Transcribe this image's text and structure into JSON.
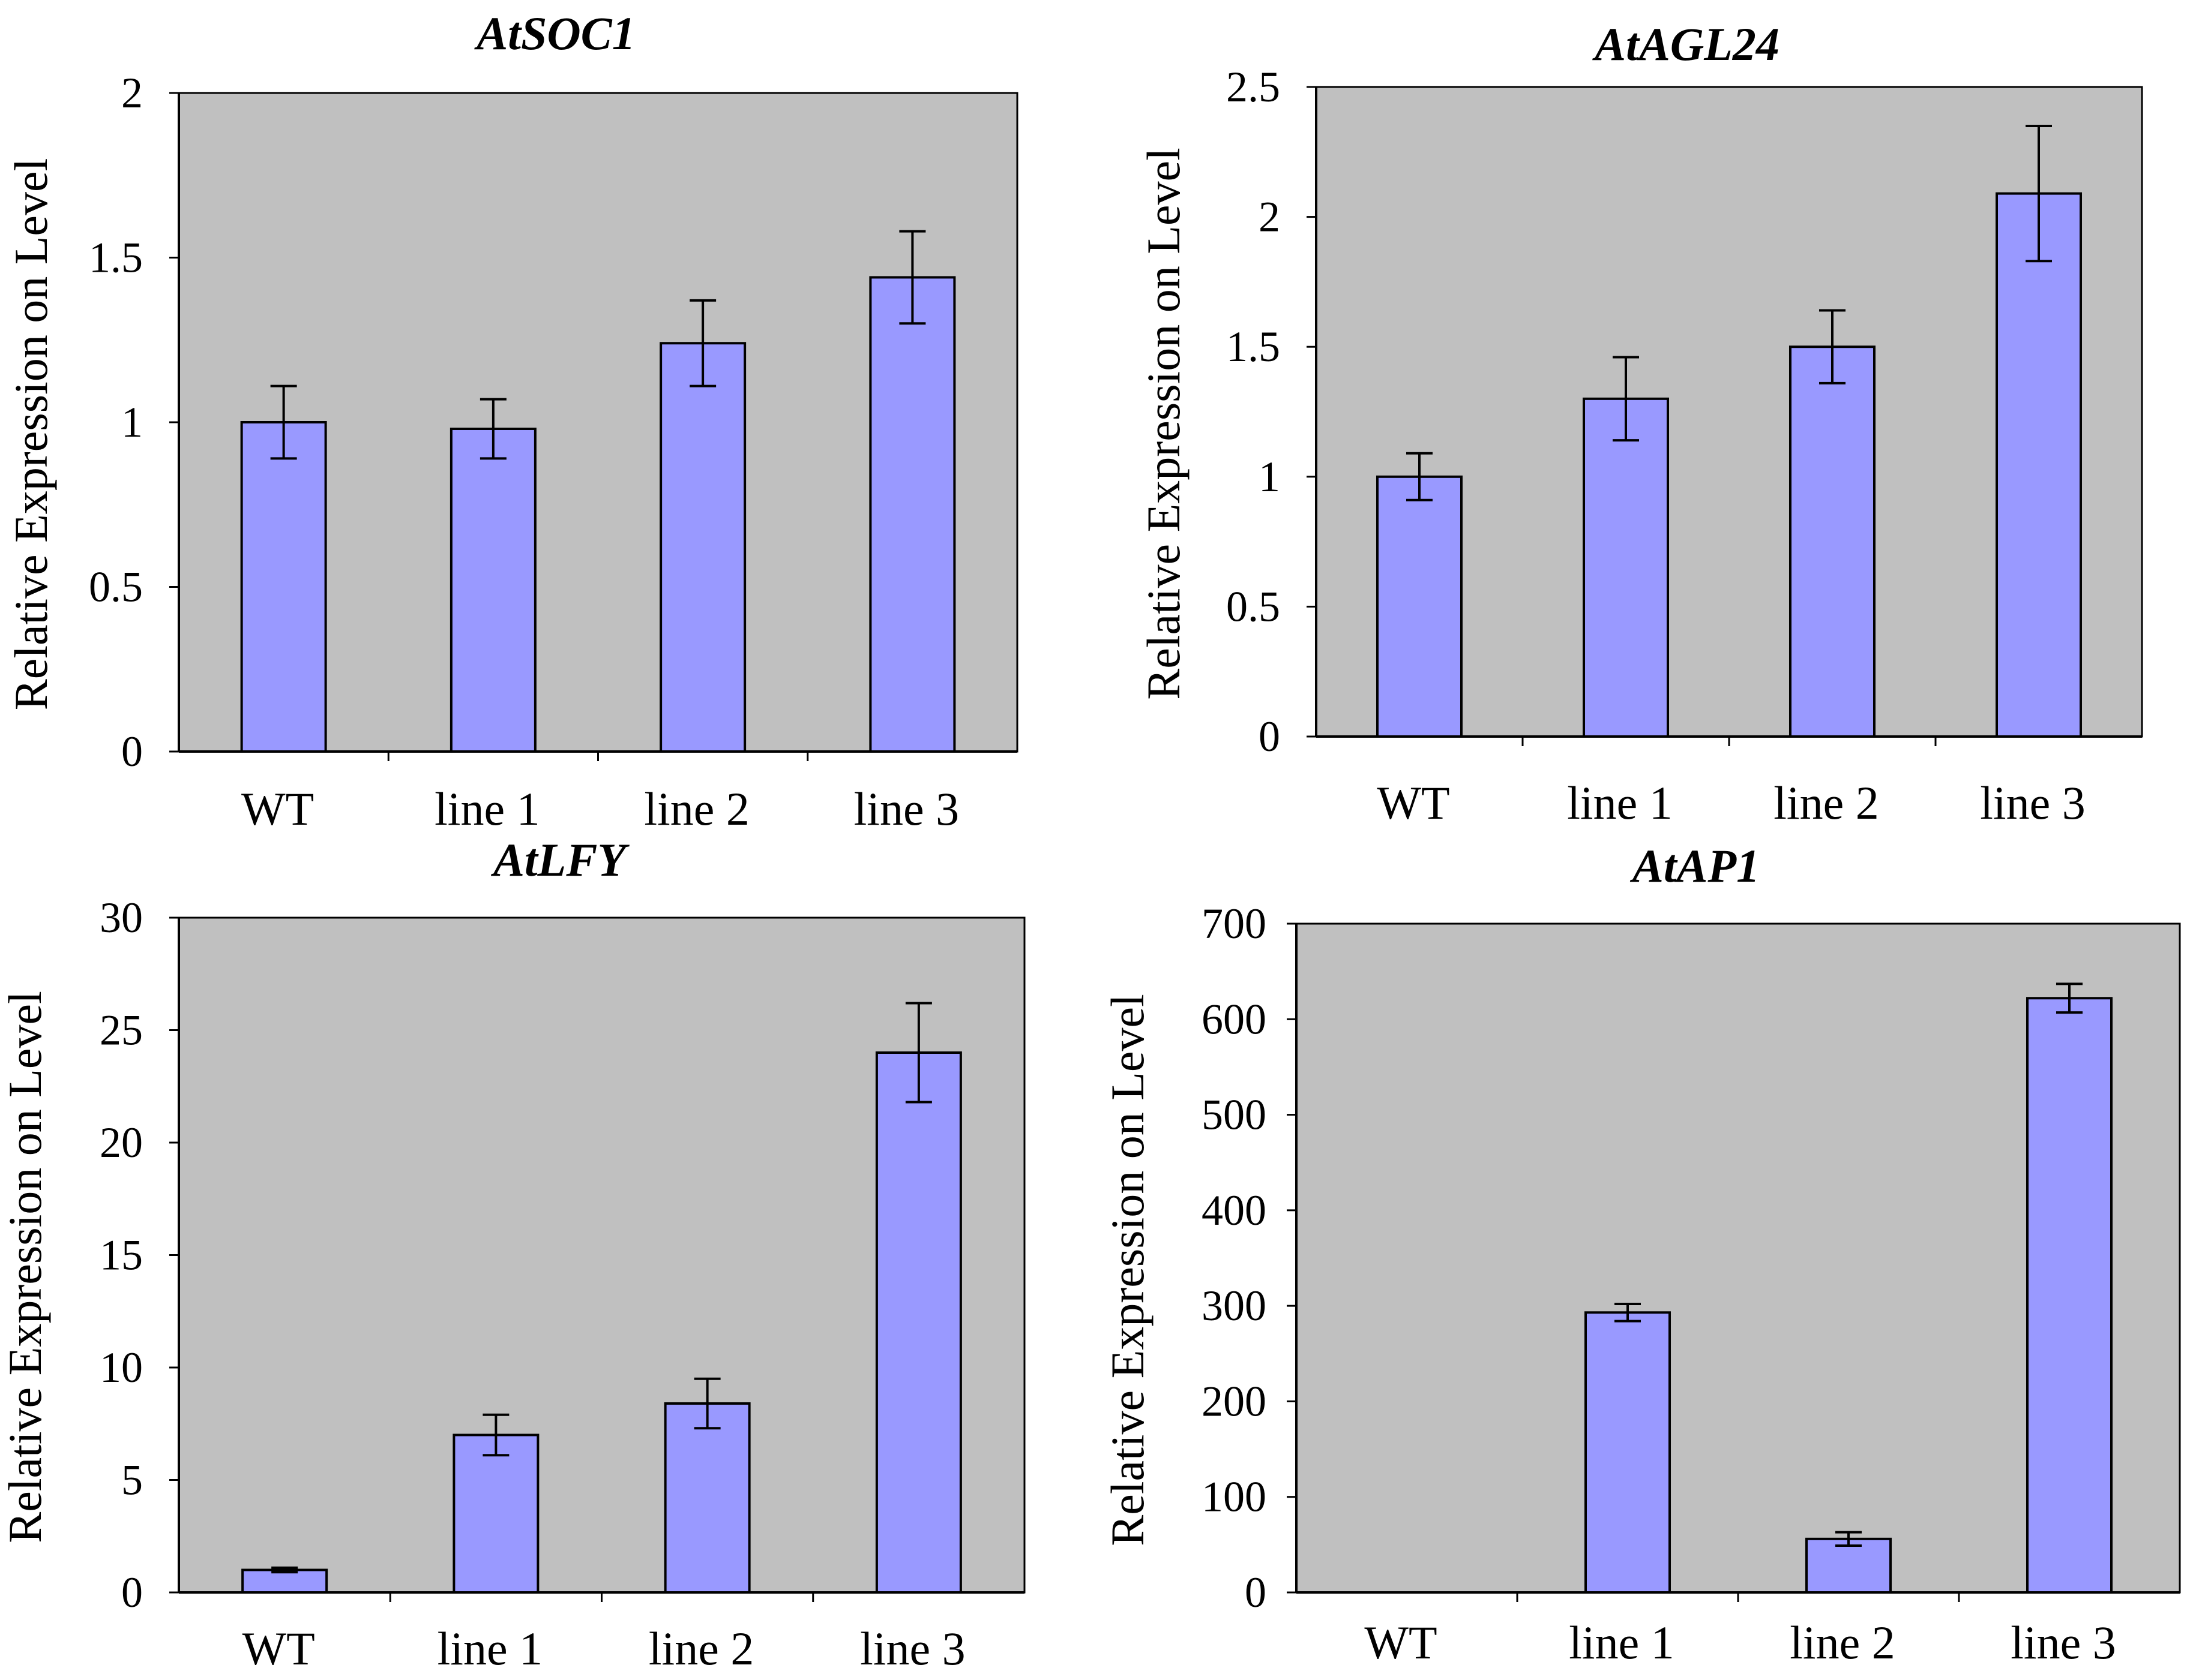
{
  "colors": {
    "plot_background": "#c0c0c0",
    "bar_fill": "#9999ff",
    "stroke": "#000000",
    "page_background": "#ffffff"
  },
  "chart_data": [
    {
      "type": "bar",
      "title": "AtSOC1",
      "ylabel": "Relative Expression on Level",
      "xlabel": "",
      "categories": [
        "WT",
        "line 1",
        "line 2",
        "line 3"
      ],
      "values": [
        1.0,
        0.98,
        1.24,
        1.44
      ],
      "errors": [
        0.11,
        0.09,
        0.13,
        0.14
      ],
      "ylim": [
        0,
        2
      ],
      "yticks": [
        0,
        0.5,
        1,
        1.5,
        2
      ],
      "ytick_labels": [
        "0",
        "0.5",
        "1",
        "1.5",
        "2"
      ]
    },
    {
      "type": "bar",
      "title": "AtAGL24",
      "ylabel": "Relative Expression on Level",
      "xlabel": "",
      "categories": [
        "WT",
        "line 1",
        "line 2",
        "line 3"
      ],
      "values": [
        1.0,
        1.3,
        1.5,
        2.09
      ],
      "errors": [
        0.09,
        0.16,
        0.14,
        0.26
      ],
      "ylim": [
        0,
        2.5
      ],
      "yticks": [
        0,
        0.5,
        1,
        1.5,
        2,
        2.5
      ],
      "ytick_labels": [
        "0",
        "0.5",
        "1",
        "1.5",
        "2",
        "2.5"
      ]
    },
    {
      "type": "bar",
      "title": "AtLFY",
      "ylabel": "Relative Expression on Level",
      "xlabel": "",
      "categories": [
        "WT",
        "line 1",
        "line 2",
        "line 3"
      ],
      "values": [
        1.0,
        7.0,
        8.4,
        24.0
      ],
      "errors": [
        0.1,
        0.9,
        1.1,
        2.2
      ],
      "ylim": [
        0,
        30
      ],
      "yticks": [
        0,
        5,
        10,
        15,
        20,
        25,
        30
      ],
      "ytick_labels": [
        "0",
        "5",
        "10",
        "15",
        "20",
        "25",
        "30"
      ]
    },
    {
      "type": "bar",
      "title": "AtAP1",
      "ylabel": "Relative Expression on Level",
      "xlabel": "",
      "categories": [
        "WT",
        "line 1",
        "line 2",
        "line 3"
      ],
      "values": [
        0,
        293,
        56,
        622
      ],
      "errors": [
        0,
        9,
        7,
        15
      ],
      "ylim": [
        0,
        700
      ],
      "yticks": [
        0,
        100,
        200,
        300,
        400,
        500,
        600,
        700
      ],
      "ytick_labels": [
        "0",
        "100",
        "200",
        "300",
        "400",
        "500",
        "600",
        "700"
      ]
    }
  ]
}
